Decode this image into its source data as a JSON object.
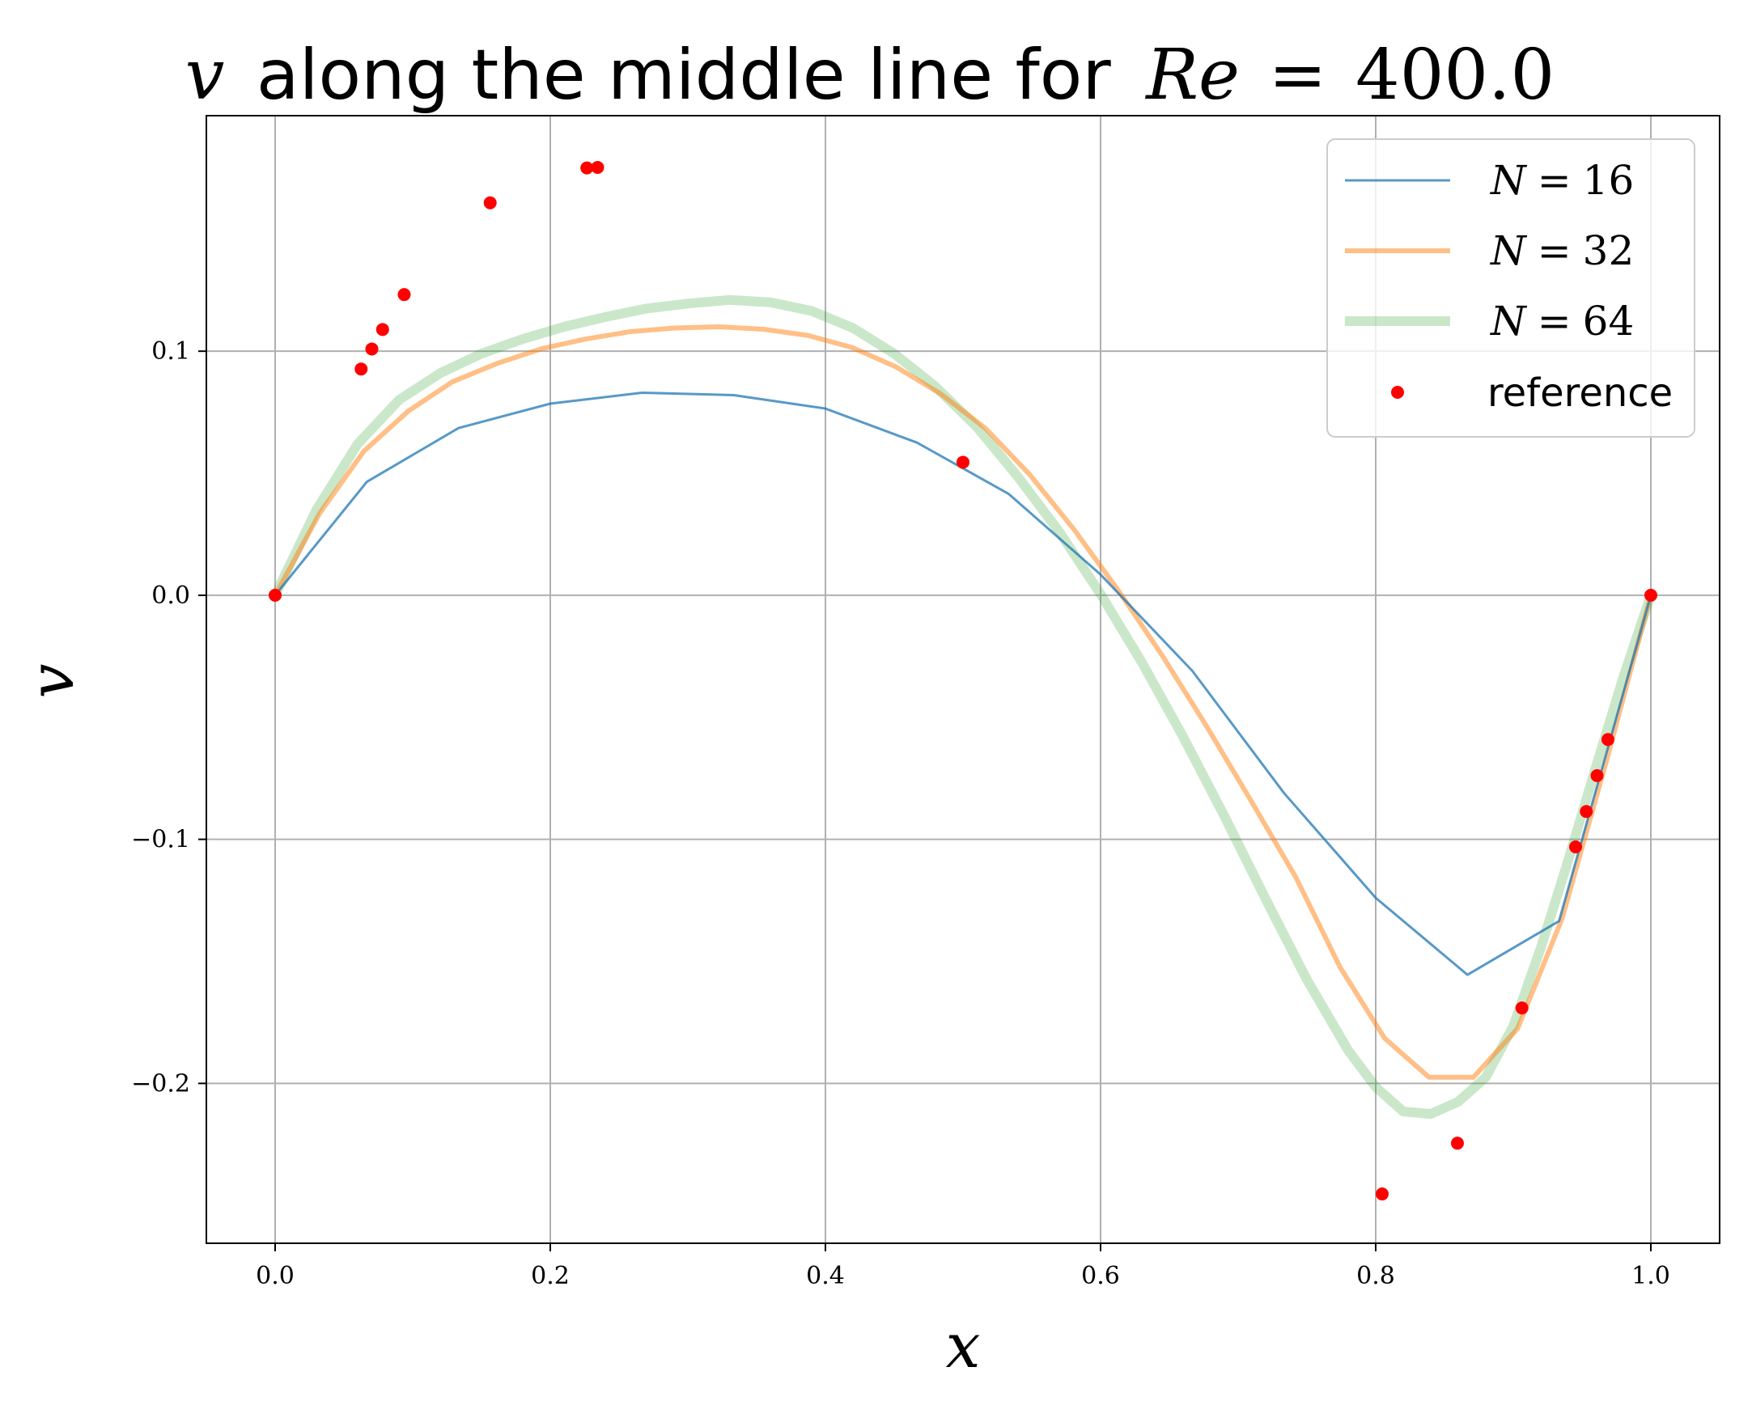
{
  "colors": {
    "n16": "#1f77b4",
    "n32": "#ff7f0e",
    "n64": "#2ca02c",
    "reference": "#ff0000",
    "grid": "#b0b0b0"
  },
  "title": {
    "var": "v",
    "text": "along the middle line for",
    "eq_lhs": "Re",
    "eq_sign": "=",
    "eq_rhs": "400.0"
  },
  "chart_data": {
    "type": "line",
    "title": "v along the middle line for Re = 400.0",
    "xlabel": "x",
    "ylabel": "v",
    "xlim": [
      -0.05,
      1.05
    ],
    "ylim": [
      -0.2655,
      0.1965
    ],
    "xticks": [
      0.0,
      0.2,
      0.4,
      0.6,
      0.8,
      1.0
    ],
    "xtick_labels": [
      "0.0",
      "0.2",
      "0.4",
      "0.6",
      "0.8",
      "1.0"
    ],
    "yticks": [
      -0.2,
      -0.1,
      0.0,
      0.1
    ],
    "ytick_labels": [
      "−0.2",
      "−0.1",
      "0.0",
      "0.1"
    ],
    "grid": true,
    "legend_position": "top-right",
    "series": [
      {
        "name": "N = 16",
        "legend_lhs": "N",
        "legend_rhs": "16",
        "style": "line-thin",
        "x": [
          0.0,
          0.0667,
          0.1333,
          0.2,
          0.2667,
          0.3333,
          0.4,
          0.4667,
          0.5333,
          0.6,
          0.6667,
          0.7333,
          0.8,
          0.8667,
          0.9333,
          1.0
        ],
        "y": [
          0.0,
          0.0465,
          0.0685,
          0.0785,
          0.083,
          0.082,
          0.0765,
          0.0625,
          0.0415,
          0.0085,
          -0.031,
          -0.081,
          -0.124,
          -0.1555,
          -0.1335,
          0.0
        ]
      },
      {
        "name": "N = 32",
        "legend_lhs": "N",
        "legend_rhs": "32",
        "style": "line-medium",
        "x": [
          0.0,
          0.0323,
          0.0645,
          0.0968,
          0.129,
          0.1613,
          0.1935,
          0.2258,
          0.2581,
          0.2903,
          0.3226,
          0.3548,
          0.3871,
          0.4194,
          0.4516,
          0.4839,
          0.5161,
          0.5484,
          0.5806,
          0.6129,
          0.6452,
          0.6774,
          0.7097,
          0.7419,
          0.7742,
          0.8065,
          0.8387,
          0.871,
          0.9032,
          0.9355,
          0.9677,
          1.0
        ],
        "y": [
          0.0,
          0.0335,
          0.059,
          0.0755,
          0.0875,
          0.095,
          0.101,
          0.105,
          0.108,
          0.1095,
          0.11,
          0.109,
          0.1065,
          0.1015,
          0.0935,
          0.0825,
          0.0685,
          0.0495,
          0.027,
          0.002,
          -0.025,
          -0.054,
          -0.0845,
          -0.1155,
          -0.1525,
          -0.1815,
          -0.1975,
          -0.1975,
          -0.1775,
          -0.1325,
          -0.068,
          0.0
        ]
      },
      {
        "name": "N = 64",
        "legend_lhs": "N",
        "legend_rhs": "64",
        "style": "line-thick",
        "x": [
          0.0,
          0.03,
          0.06,
          0.09,
          0.12,
          0.15,
          0.18,
          0.21,
          0.24,
          0.27,
          0.3,
          0.33,
          0.36,
          0.39,
          0.42,
          0.45,
          0.48,
          0.51,
          0.54,
          0.57,
          0.6,
          0.63,
          0.66,
          0.69,
          0.72,
          0.75,
          0.78,
          0.8,
          0.82,
          0.84,
          0.86,
          0.88,
          0.9,
          0.92,
          0.94,
          0.96,
          0.98,
          1.0
        ],
        "y": [
          0.0,
          0.035,
          0.062,
          0.08,
          0.091,
          0.099,
          0.105,
          0.11,
          0.114,
          0.1175,
          0.1195,
          0.121,
          0.12,
          0.1165,
          0.1095,
          0.099,
          0.0855,
          0.069,
          0.0485,
          0.026,
          0.0005,
          -0.0275,
          -0.058,
          -0.0905,
          -0.1245,
          -0.1575,
          -0.1865,
          -0.2015,
          -0.2115,
          -0.2125,
          -0.2075,
          -0.1975,
          -0.1765,
          -0.1445,
          -0.1085,
          -0.0705,
          -0.0335,
          0.0
        ]
      },
      {
        "name": "reference",
        "style": "points",
        "x": [
          0.0,
          0.0625,
          0.0703,
          0.0781,
          0.0938,
          0.1563,
          0.2266,
          0.2344,
          0.5,
          0.8047,
          0.8594,
          0.9063,
          0.9453,
          0.9531,
          0.9609,
          0.9688,
          1.0
        ],
        "y": [
          0.0,
          0.0927,
          0.1009,
          0.1089,
          0.1232,
          0.1608,
          0.1751,
          0.1753,
          0.0545,
          -0.2453,
          -0.2245,
          -0.1691,
          -0.1031,
          -0.0886,
          -0.0739,
          -0.0591,
          0.0
        ]
      }
    ]
  }
}
